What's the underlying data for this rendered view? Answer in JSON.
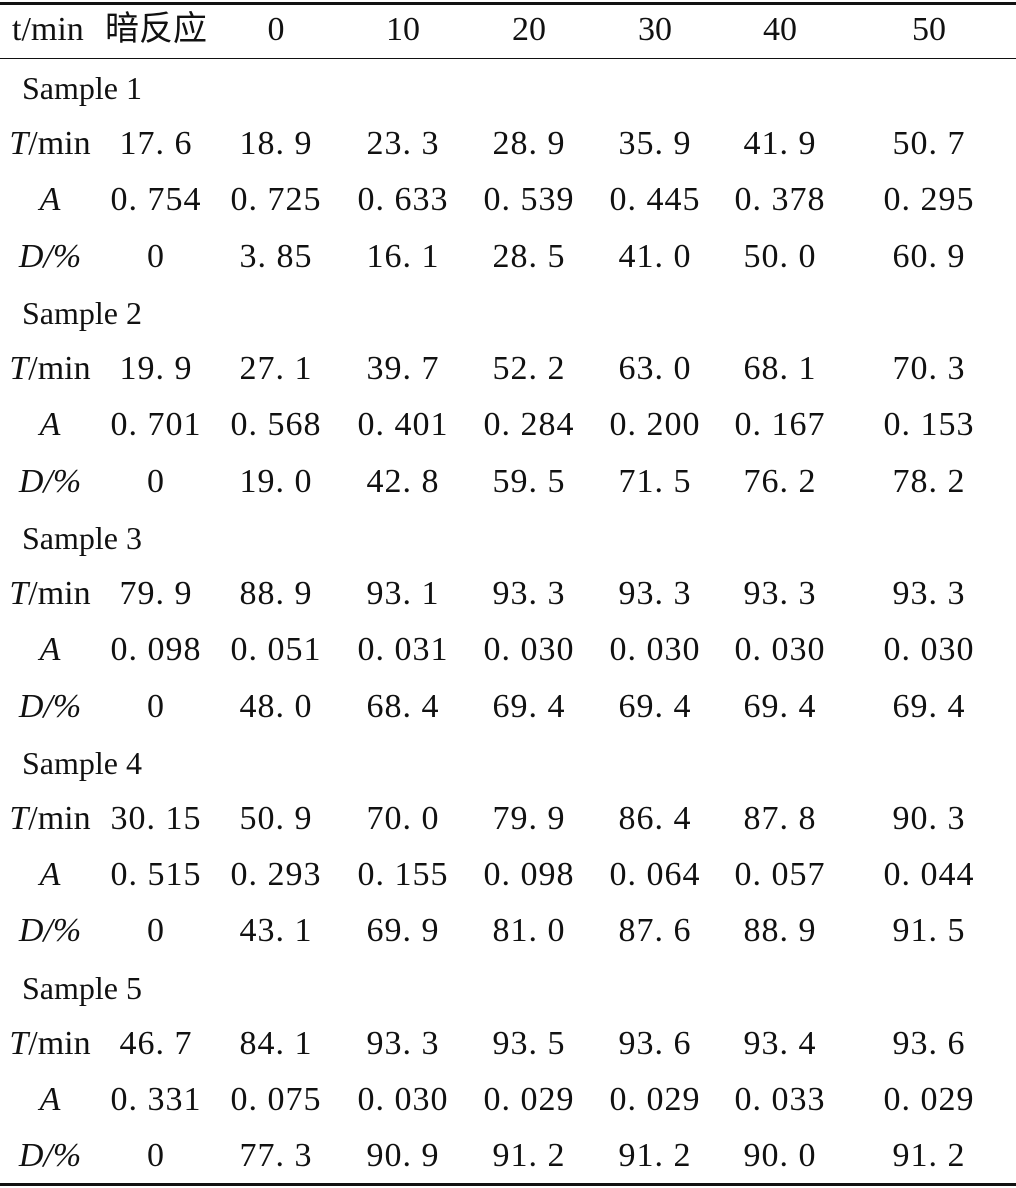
{
  "header": [
    "t/min",
    "暗反应",
    "0",
    "10",
    "20",
    "30",
    "40",
    "50"
  ],
  "groups": [
    {
      "title": "Sample 1",
      "rows": [
        {
          "var": "T",
          "unit": "/min",
          "values": [
            "17. 6",
            "18. 9",
            "23. 3",
            "28. 9",
            "35. 9",
            "41. 9",
            "50. 7"
          ]
        },
        {
          "var": "A",
          "unit": "",
          "values": [
            "0. 754",
            "0. 725",
            "0. 633",
            "0. 539",
            "0. 445",
            "0. 378",
            "0. 295"
          ]
        },
        {
          "var": "D/%",
          "unit": "",
          "values": [
            "0",
            "3. 85",
            "16. 1",
            "28. 5",
            "41. 0",
            "50. 0",
            "60. 9"
          ]
        }
      ]
    },
    {
      "title": "Sample 2",
      "rows": [
        {
          "var": "T",
          "unit": "/min",
          "values": [
            "19. 9",
            "27. 1",
            "39. 7",
            "52. 2",
            "63. 0",
            "68. 1",
            "70. 3"
          ]
        },
        {
          "var": "A",
          "unit": "",
          "values": [
            "0. 701",
            "0. 568",
            "0. 401",
            "0. 284",
            "0. 200",
            "0. 167",
            "0. 153"
          ]
        },
        {
          "var": "D/%",
          "unit": "",
          "values": [
            "0",
            "19. 0",
            "42. 8",
            "59. 5",
            "71. 5",
            "76. 2",
            "78. 2"
          ]
        }
      ]
    },
    {
      "title": "Sample 3",
      "rows": [
        {
          "var": "T",
          "unit": "/min",
          "values": [
            "79. 9",
            "88. 9",
            "93. 1",
            "93. 3",
            "93. 3",
            "93. 3",
            "93. 3"
          ]
        },
        {
          "var": "A",
          "unit": "",
          "values": [
            "0. 098",
            "0. 051",
            "0. 031",
            "0. 030",
            "0. 030",
            "0. 030",
            "0. 030"
          ]
        },
        {
          "var": "D/%",
          "unit": "",
          "values": [
            "0",
            "48. 0",
            "68. 4",
            "69. 4",
            "69. 4",
            "69. 4",
            "69. 4"
          ]
        }
      ]
    },
    {
      "title": "Sample 4",
      "rows": [
        {
          "var": "T",
          "unit": "/min",
          "values": [
            "30. 15",
            "50. 9",
            "70. 0",
            "79. 9",
            "86. 4",
            "87. 8",
            "90. 3"
          ]
        },
        {
          "var": "A",
          "unit": "",
          "values": [
            "0. 515",
            "0. 293",
            "0. 155",
            "0. 098",
            "0. 064",
            "0. 057",
            "0. 044"
          ]
        },
        {
          "var": "D/%",
          "unit": "",
          "values": [
            "0",
            "43. 1",
            "69. 9",
            "81. 0",
            "87. 6",
            "88. 9",
            "91. 5"
          ]
        }
      ]
    },
    {
      "title": "Sample 5",
      "rows": [
        {
          "var": "T",
          "unit": "/min",
          "values": [
            "46. 7",
            "84. 1",
            "93. 3",
            "93. 5",
            "93. 6",
            "93. 4",
            "93. 6"
          ]
        },
        {
          "var": "A",
          "unit": "",
          "values": [
            "0. 331",
            "0. 075",
            "0. 030",
            "0. 029",
            "0. 029",
            "0. 033",
            "0. 029"
          ]
        },
        {
          "var": "D/%",
          "unit": "",
          "values": [
            "0",
            "77. 3",
            "90. 9",
            "91. 2",
            "91. 2",
            "90. 0",
            "91. 2"
          ]
        }
      ]
    }
  ]
}
